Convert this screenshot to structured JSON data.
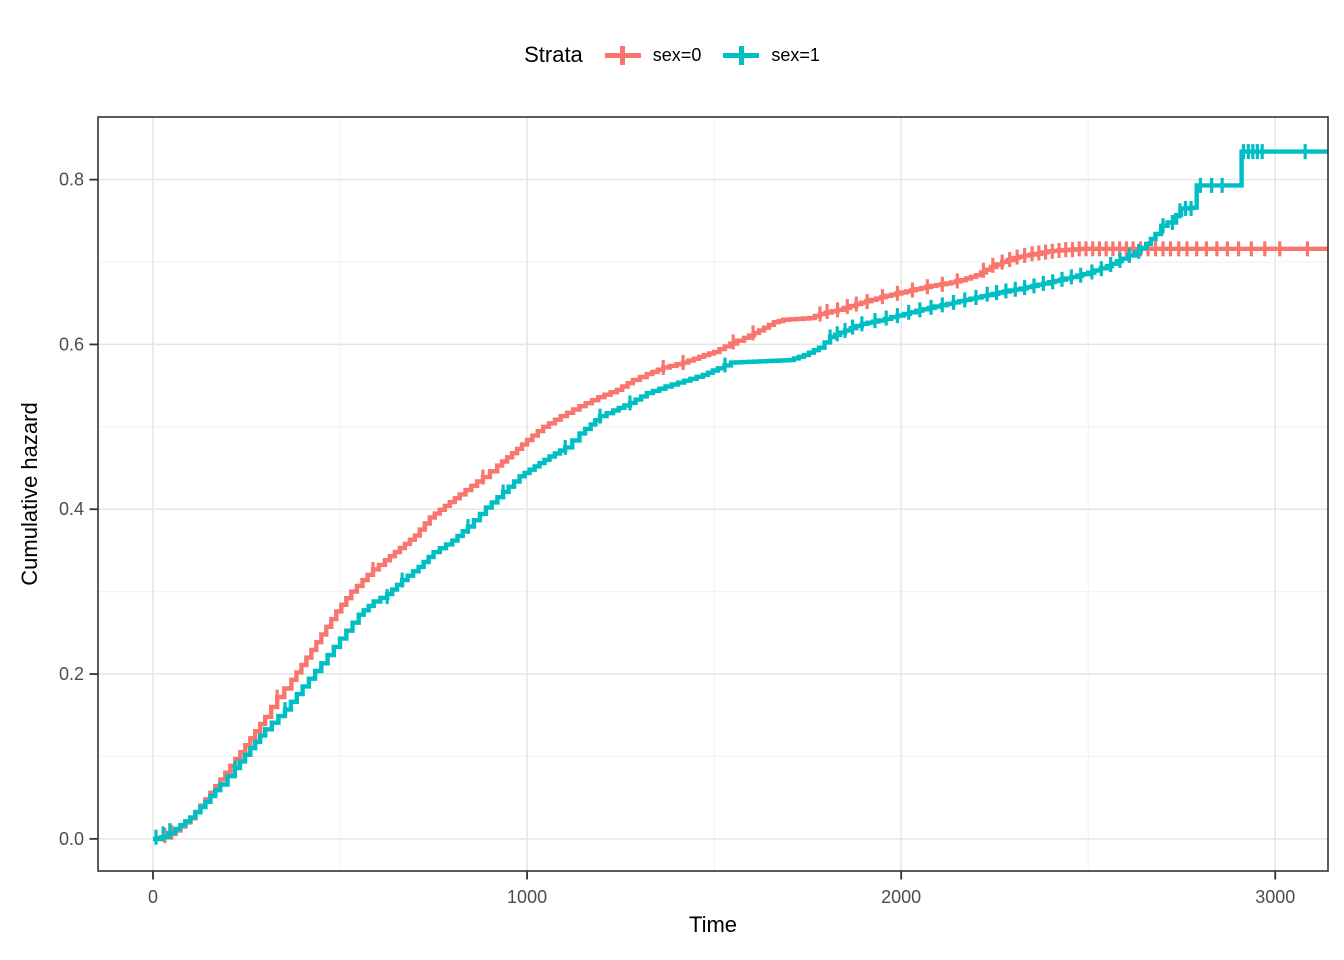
{
  "legend": {
    "title": "Strata"
  },
  "chart_data": {
    "type": "line",
    "subtype": "step-cumulative-hazard",
    "title": "Strata",
    "xlabel": "Time",
    "ylabel": "Cumulative hazard",
    "xlim": [
      -147,
      3141
    ],
    "ylim": [
      -0.039,
      0.876
    ],
    "grid": true,
    "legend_position": "top",
    "x_ticks": {
      "values": [
        0,
        1000,
        2000,
        3000
      ],
      "labels": [
        "0",
        "1000",
        "2000",
        "3000"
      ],
      "minor": [
        500,
        1500,
        2500
      ]
    },
    "y_ticks": {
      "values": [
        0,
        0.2,
        0.4,
        0.6,
        0.8
      ],
      "labels": [
        "0.0",
        "0.2",
        "0.4",
        "0.6",
        "0.8"
      ],
      "minor": [
        0.1,
        0.3,
        0.5,
        0.7
      ]
    },
    "series": [
      {
        "name": "sex=0",
        "color": "#F8766D",
        "points": [
          [
            0,
            0
          ],
          [
            28,
            0.002
          ],
          [
            60,
            0.01
          ],
          [
            100,
            0.025
          ],
          [
            140,
            0.048
          ],
          [
            180,
            0.072
          ],
          [
            220,
            0.097
          ],
          [
            260,
            0.122
          ],
          [
            300,
            0.148
          ],
          [
            332,
            0.172
          ],
          [
            370,
            0.193
          ],
          [
            410,
            0.22
          ],
          [
            450,
            0.248
          ],
          [
            490,
            0.276
          ],
          [
            530,
            0.3
          ],
          [
            560,
            0.314
          ],
          [
            588,
            0.327
          ],
          [
            620,
            0.338
          ],
          [
            660,
            0.353
          ],
          [
            700,
            0.368
          ],
          [
            740,
            0.39
          ],
          [
            780,
            0.404
          ],
          [
            820,
            0.418
          ],
          [
            882,
            0.439
          ],
          [
            920,
            0.453
          ],
          [
            960,
            0.468
          ],
          [
            1000,
            0.484
          ],
          [
            1043,
            0.5
          ],
          [
            1090,
            0.513
          ],
          [
            1140,
            0.525
          ],
          [
            1190,
            0.536
          ],
          [
            1240,
            0.545
          ],
          [
            1283,
            0.557
          ],
          [
            1320,
            0.564
          ],
          [
            1364,
            0.572
          ],
          [
            1417,
            0.578
          ],
          [
            1460,
            0.585
          ],
          [
            1500,
            0.591
          ],
          [
            1543,
            0.601
          ],
          [
            1580,
            0.608
          ],
          [
            1620,
            0.617
          ],
          [
            1660,
            0.627
          ],
          [
            1685,
            0.63
          ],
          [
            1755,
            0.632
          ],
          [
            1783,
            0.637
          ],
          [
            1830,
            0.642
          ],
          [
            1880,
            0.649
          ],
          [
            1920,
            0.654
          ],
          [
            1960,
            0.659
          ],
          [
            2000,
            0.663
          ],
          [
            2040,
            0.667
          ],
          [
            2080,
            0.671
          ],
          [
            2120,
            0.674
          ],
          [
            2160,
            0.678
          ],
          [
            2200,
            0.684
          ],
          [
            2240,
            0.694
          ],
          [
            2270,
            0.7
          ],
          [
            2300,
            0.705
          ],
          [
            2330,
            0.708
          ],
          [
            2360,
            0.71
          ],
          [
            2390,
            0.713
          ],
          [
            2420,
            0.714
          ],
          [
            2450,
            0.715
          ],
          [
            2480,
            0.716
          ],
          [
            3141,
            0.716
          ]
        ],
        "censor_marks": [
          [
            32,
            0.004
          ],
          [
            50,
            0.008
          ],
          [
            332,
            0.172
          ],
          [
            588,
            0.327
          ],
          [
            882,
            0.439
          ],
          [
            1364,
            0.572
          ],
          [
            1417,
            0.578
          ],
          [
            1551,
            0.603
          ],
          [
            1604,
            0.614
          ],
          [
            1783,
            0.637
          ],
          [
            1802,
            0.64
          ],
          [
            1830,
            0.642
          ],
          [
            1856,
            0.646
          ],
          [
            1880,
            0.649
          ],
          [
            1909,
            0.652
          ],
          [
            1950,
            0.658
          ],
          [
            1990,
            0.662
          ],
          [
            2030,
            0.666
          ],
          [
            2070,
            0.67
          ],
          [
            2110,
            0.673
          ],
          [
            2150,
            0.677
          ],
          [
            2220,
            0.69
          ],
          [
            2245,
            0.696
          ],
          [
            2270,
            0.7
          ],
          [
            2290,
            0.703
          ],
          [
            2310,
            0.706
          ],
          [
            2330,
            0.708
          ],
          [
            2350,
            0.71
          ],
          [
            2368,
            0.711
          ],
          [
            2386,
            0.712
          ],
          [
            2404,
            0.713
          ],
          [
            2422,
            0.714
          ],
          [
            2440,
            0.715
          ],
          [
            2458,
            0.715
          ],
          [
            2476,
            0.716
          ],
          [
            2494,
            0.716
          ],
          [
            2512,
            0.716
          ],
          [
            2530,
            0.716
          ],
          [
            2548,
            0.716
          ],
          [
            2566,
            0.716
          ],
          [
            2584,
            0.716
          ],
          [
            2602,
            0.716
          ],
          [
            2620,
            0.716
          ],
          [
            2640,
            0.716
          ],
          [
            2660,
            0.716
          ],
          [
            2680,
            0.716
          ],
          [
            2700,
            0.716
          ],
          [
            2720,
            0.716
          ],
          [
            2742,
            0.716
          ],
          [
            2764,
            0.716
          ],
          [
            2790,
            0.716
          ],
          [
            2816,
            0.716
          ],
          [
            2844,
            0.716
          ],
          [
            2872,
            0.716
          ],
          [
            2902,
            0.716
          ],
          [
            2936,
            0.716
          ],
          [
            2972,
            0.716
          ],
          [
            3012,
            0.716
          ],
          [
            3086,
            0.716
          ]
        ]
      },
      {
        "name": "sex=1",
        "color": "#00BFC4",
        "points": [
          [
            0,
            0
          ],
          [
            22,
            0.002
          ],
          [
            60,
            0.012
          ],
          [
            100,
            0.026
          ],
          [
            140,
            0.045
          ],
          [
            180,
            0.066
          ],
          [
            219,
            0.086
          ],
          [
            260,
            0.11
          ],
          [
            300,
            0.133
          ],
          [
            353,
            0.157
          ],
          [
            400,
            0.185
          ],
          [
            450,
            0.213
          ],
          [
            500,
            0.243
          ],
          [
            550,
            0.272
          ],
          [
            590,
            0.288
          ],
          [
            626,
            0.297
          ],
          [
            666,
            0.314
          ],
          [
            710,
            0.33
          ],
          [
            750,
            0.348
          ],
          [
            800,
            0.362
          ],
          [
            842,
            0.379
          ],
          [
            890,
            0.402
          ],
          [
            936,
            0.421
          ],
          [
            980,
            0.44
          ],
          [
            1020,
            0.452
          ],
          [
            1060,
            0.464
          ],
          [
            1102,
            0.475
          ],
          [
            1140,
            0.492
          ],
          [
            1170,
            0.503
          ],
          [
            1195,
            0.513
          ],
          [
            1230,
            0.52
          ],
          [
            1275,
            0.529
          ],
          [
            1320,
            0.541
          ],
          [
            1370,
            0.549
          ],
          [
            1420,
            0.556
          ],
          [
            1470,
            0.563
          ],
          [
            1510,
            0.571
          ],
          [
            1545,
            0.578
          ],
          [
            1700,
            0.581
          ],
          [
            1740,
            0.587
          ],
          [
            1780,
            0.596
          ],
          [
            1810,
            0.609
          ],
          [
            1850,
            0.617
          ],
          [
            1895,
            0.625
          ],
          [
            1940,
            0.629
          ],
          [
            1990,
            0.635
          ],
          [
            2040,
            0.641
          ],
          [
            2090,
            0.646
          ],
          [
            2140,
            0.651
          ],
          [
            2200,
            0.657
          ],
          [
            2260,
            0.663
          ],
          [
            2320,
            0.668
          ],
          [
            2380,
            0.674
          ],
          [
            2440,
            0.68
          ],
          [
            2500,
            0.687
          ],
          [
            2550,
            0.695
          ],
          [
            2590,
            0.704
          ],
          [
            2625,
            0.712
          ],
          [
            2655,
            0.722
          ],
          [
            2680,
            0.734
          ],
          [
            2695,
            0.744
          ],
          [
            2712,
            0.748
          ],
          [
            2735,
            0.757
          ],
          [
            2748,
            0.765
          ],
          [
            2783,
            0.766
          ],
          [
            2790,
            0.793
          ],
          [
            2902,
            0.793
          ],
          [
            2910,
            0.834
          ],
          [
            3141,
            0.834
          ]
        ],
        "censor_marks": [
          [
            8,
            0.002
          ],
          [
            27,
            0.006
          ],
          [
            45,
            0.01
          ],
          [
            219,
            0.086
          ],
          [
            353,
            0.157
          ],
          [
            626,
            0.294
          ],
          [
            666,
            0.314
          ],
          [
            842,
            0.379
          ],
          [
            936,
            0.421
          ],
          [
            1102,
            0.475
          ],
          [
            1195,
            0.513
          ],
          [
            1275,
            0.529
          ],
          [
            1529,
            0.575
          ],
          [
            1810,
            0.609
          ],
          [
            1829,
            0.613
          ],
          [
            1850,
            0.617
          ],
          [
            1870,
            0.621
          ],
          [
            1895,
            0.625
          ],
          [
            1930,
            0.629
          ],
          [
            1960,
            0.632
          ],
          [
            1990,
            0.635
          ],
          [
            2020,
            0.639
          ],
          [
            2050,
            0.642
          ],
          [
            2080,
            0.645
          ],
          [
            2110,
            0.648
          ],
          [
            2140,
            0.651
          ],
          [
            2170,
            0.654
          ],
          [
            2200,
            0.657
          ],
          [
            2230,
            0.661
          ],
          [
            2255,
            0.663
          ],
          [
            2280,
            0.665
          ],
          [
            2305,
            0.667
          ],
          [
            2330,
            0.669
          ],
          [
            2355,
            0.671
          ],
          [
            2380,
            0.674
          ],
          [
            2405,
            0.676
          ],
          [
            2430,
            0.679
          ],
          [
            2455,
            0.682
          ],
          [
            2480,
            0.684
          ],
          [
            2510,
            0.688
          ],
          [
            2535,
            0.692
          ],
          [
            2560,
            0.697
          ],
          [
            2585,
            0.702
          ],
          [
            2610,
            0.708
          ],
          [
            2635,
            0.713
          ],
          [
            2700,
            0.744
          ],
          [
            2725,
            0.748
          ],
          [
            2745,
            0.762
          ],
          [
            2760,
            0.765
          ],
          [
            2775,
            0.765
          ],
          [
            2800,
            0.793
          ],
          [
            2830,
            0.793
          ],
          [
            2858,
            0.793
          ],
          [
            2915,
            0.834
          ],
          [
            2928,
            0.834
          ],
          [
            2940,
            0.834
          ],
          [
            2952,
            0.834
          ],
          [
            2965,
            0.834
          ],
          [
            3080,
            0.834
          ]
        ]
      }
    ]
  },
  "colors": {
    "background": "#FFFFFF",
    "panel_border": "#333333",
    "grid_major": "#E6E6E6",
    "grid_minor": "#F2F2F2",
    "axis_text": "#4D4D4D",
    "axis_title": "#000000",
    "tick_mark": "#333333"
  }
}
